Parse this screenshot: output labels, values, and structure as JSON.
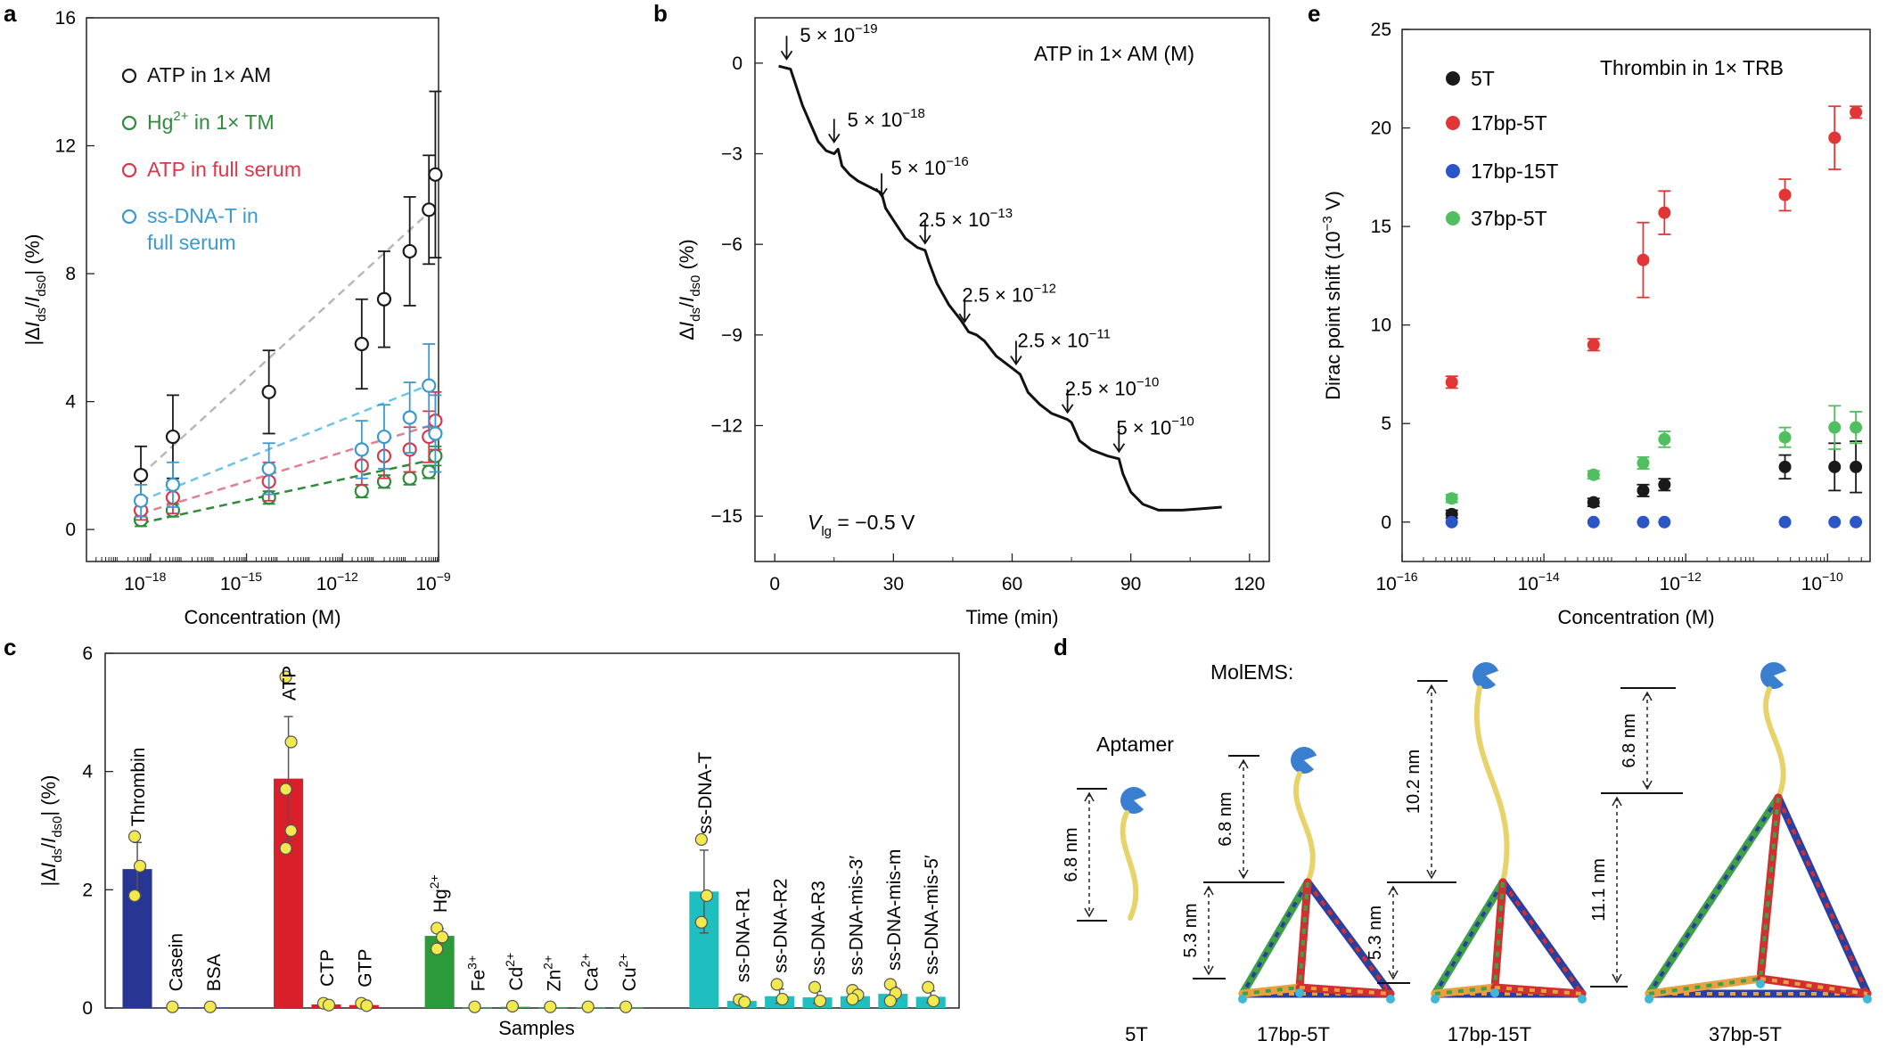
{
  "panel_labels": {
    "a": "a",
    "b": "b",
    "c": "c",
    "d": "d",
    "e": "e"
  },
  "chart_data": [
    {
      "panel": "a",
      "type": "scatter",
      "xlabel": "Concentration (M)",
      "ylabel_parts": [
        "|Δ",
        "I",
        "ds",
        "/",
        "I",
        "ds0",
        "| (%)"
      ],
      "xscale": "log",
      "xlim_exp": [
        -20,
        -9
      ],
      "xticks": [
        "10",
        "10",
        "10",
        "10"
      ],
      "xtick_exps": [
        "−18",
        "−15",
        "−12",
        "−9"
      ],
      "xtick_values_exp": [
        -18,
        -15,
        -12,
        -9
      ],
      "ylim": [
        -1,
        16
      ],
      "yticks": [
        0,
        4,
        8,
        12,
        16
      ],
      "series": [
        {
          "name": "ATP in 1× AM",
          "color": "#1a1a1a",
          "line": "#b8b8b8",
          "x_exp": [
            -18.3,
            -17.3,
            -14.3,
            -11.4,
            -10.7,
            -9.9,
            -9.3,
            -9.1
          ],
          "y": [
            1.7,
            2.9,
            4.3,
            5.8,
            7.2,
            8.7,
            10.0,
            11.1
          ],
          "err": [
            0.9,
            1.3,
            1.3,
            1.4,
            1.5,
            1.7,
            1.7,
            2.6
          ],
          "fit": [
            [
              -18.3,
              1.7
            ],
            [
              -9.1,
              10.1
            ]
          ]
        },
        {
          "name": "Hg",
          "name_sup": "2+",
          "name_rest": " in 1× TM",
          "color": "#2e8b3a",
          "line": "#2e8b3a",
          "x_exp": [
            -18.3,
            -17.3,
            -14.3,
            -11.4,
            -10.7,
            -9.9,
            -9.3,
            -9.1
          ],
          "y": [
            0.3,
            0.6,
            1.0,
            1.2,
            1.5,
            1.6,
            1.8,
            2.3
          ],
          "err": [
            0.2,
            0.2,
            0.2,
            0.2,
            0.2,
            0.2,
            0.2,
            0.3
          ],
          "fit": [
            [
              -18.3,
              0.2
            ],
            [
              -9.1,
              2.2
            ]
          ]
        },
        {
          "name": "ATP in full serum",
          "color": "#d9374b",
          "line": "#e08090",
          "x_exp": [
            -18.3,
            -17.3,
            -14.3,
            -11.4,
            -10.7,
            -9.9,
            -9.3,
            -9.1
          ],
          "y": [
            0.6,
            1.0,
            1.5,
            2.0,
            2.3,
            2.5,
            2.9,
            3.4
          ],
          "err": [
            0.3,
            0.5,
            0.6,
            0.6,
            0.7,
            0.7,
            0.8,
            0.9
          ],
          "fit": [
            [
              -18.3,
              0.5
            ],
            [
              -9.1,
              3.3
            ]
          ]
        },
        {
          "name": "ss-DNA-T in",
          "name2": "full serum",
          "color": "#3a9ad0",
          "line": "#6fc4e8",
          "x_exp": [
            -18.3,
            -17.3,
            -14.3,
            -11.4,
            -10.7,
            -9.9,
            -9.3,
            -9.1
          ],
          "y": [
            0.9,
            1.4,
            1.9,
            2.5,
            2.9,
            3.5,
            4.5,
            3.0
          ],
          "err": [
            0.5,
            0.7,
            0.8,
            0.9,
            1.0,
            1.1,
            1.3,
            1.2
          ],
          "fit": [
            [
              -18.3,
              0.9
            ],
            [
              -9.1,
              4.6
            ]
          ]
        }
      ]
    },
    {
      "panel": "b",
      "type": "line",
      "xlabel": "Time (min)",
      "ylabel_parts": [
        "Δ",
        "I",
        "ds",
        "/",
        "I",
        "ds0",
        " (%)"
      ],
      "xlim": [
        -5,
        125
      ],
      "xticks": [
        0,
        30,
        60,
        90,
        120
      ],
      "ylim": [
        -16.5,
        1.5
      ],
      "yticks": [
        0,
        -3,
        -6,
        -9,
        -12,
        -15
      ],
      "ytick_labels": [
        "0",
        "−3",
        "−6",
        "−9",
        "−12",
        "−15"
      ],
      "legend_text": "ATP in 1× AM (M)",
      "vlg_parts": [
        "V",
        "lg",
        " = −0.5 V"
      ],
      "trace": [
        [
          1,
          -0.1
        ],
        [
          4,
          -0.2
        ],
        [
          5,
          -0.6
        ],
        [
          7,
          -1.4
        ],
        [
          9,
          -2.0
        ],
        [
          11,
          -2.6
        ],
        [
          13,
          -2.9
        ],
        [
          15,
          -3.0
        ],
        [
          16,
          -2.85
        ],
        [
          17,
          -3.4
        ],
        [
          19,
          -3.7
        ],
        [
          21,
          -3.9
        ],
        [
          24,
          -4.1
        ],
        [
          27,
          -4.3
        ],
        [
          28,
          -4.8
        ],
        [
          30,
          -5.2
        ],
        [
          33,
          -5.8
        ],
        [
          36,
          -6.1
        ],
        [
          38,
          -6.2
        ],
        [
          39,
          -6.6
        ],
        [
          41,
          -7.3
        ],
        [
          44,
          -8.0
        ],
        [
          47,
          -8.5
        ],
        [
          49,
          -8.9
        ],
        [
          51,
          -9.0
        ],
        [
          53,
          -9.2
        ],
        [
          56,
          -9.7
        ],
        [
          60,
          -10.1
        ],
        [
          62,
          -10.3
        ],
        [
          64,
          -10.9
        ],
        [
          67,
          -11.3
        ],
        [
          70,
          -11.6
        ],
        [
          74,
          -11.8
        ],
        [
          75,
          -11.9
        ],
        [
          77,
          -12.5
        ],
        [
          80,
          -12.8
        ],
        [
          84,
          -13.0
        ],
        [
          87,
          -13.1
        ],
        [
          88,
          -13.6
        ],
        [
          90,
          -14.2
        ],
        [
          93,
          -14.6
        ],
        [
          97,
          -14.8
        ],
        [
          103,
          -14.8
        ],
        [
          108,
          -14.75
        ],
        [
          113,
          -14.7
        ]
      ],
      "annotations": [
        {
          "base": "5 × 10",
          "exp": "−19",
          "at": [
            3,
            -0.1
          ],
          "label_xy": [
            5,
            0.7
          ]
        },
        {
          "base": "5 × 10",
          "exp": "−18",
          "at": [
            15,
            -2.85
          ],
          "label_xy": [
            17,
            -2.1
          ]
        },
        {
          "base": "5 × 10",
          "exp": "−16",
          "at": [
            27,
            -4.65
          ],
          "label_xy": [
            28,
            -3.7
          ]
        },
        {
          "base": "2.5 × 10",
          "exp": "−13",
          "at": [
            38,
            -6.2
          ],
          "label_xy": [
            35,
            -5.4
          ]
        },
        {
          "base": "2.5 × 10",
          "exp": "−12",
          "at": [
            48,
            -8.8
          ],
          "label_xy": [
            46,
            -7.9
          ]
        },
        {
          "base": "2.5 × 10",
          "exp": "−11",
          "at": [
            61,
            -10.2
          ],
          "label_xy": [
            60,
            -9.4
          ]
        },
        {
          "base": "2.5 × 10",
          "exp": "−10",
          "at": [
            74,
            -11.8
          ],
          "label_xy": [
            72,
            -11.0
          ]
        },
        {
          "base": "5 × 10",
          "exp": "−10",
          "at": [
            87,
            -13.1
          ],
          "label_xy": [
            85,
            -12.3
          ]
        }
      ]
    },
    {
      "panel": "e",
      "type": "scatter",
      "title": "Thrombin in 1× TRB",
      "xlabel": "Concentration (M)",
      "ylabel_parts": [
        "Dirac point shift (10",
        "−3",
        " V)"
      ],
      "xscale": "log",
      "xlim_exp": [
        -16,
        -9.4
      ],
      "xticks": [
        "10",
        "10",
        "10",
        "10"
      ],
      "xtick_exps": [
        "−16",
        "−14",
        "−12",
        "−10"
      ],
      "xtick_values_exp": [
        -16,
        -14,
        -12,
        -10
      ],
      "ylim": [
        -2,
        25
      ],
      "yticks": [
        0,
        5,
        10,
        15,
        20,
        25
      ],
      "series": [
        {
          "name": "5T",
          "color": "#1a1a1a",
          "x_exp": [
            -15.3,
            -13.3,
            -12.6,
            -12.3,
            -10.6,
            -9.9,
            -9.6
          ],
          "y": [
            0.4,
            1.0,
            1.6,
            1.9,
            2.8,
            2.8,
            2.8
          ],
          "err": [
            0.2,
            0.2,
            0.3,
            0.3,
            0.6,
            1.2,
            1.3
          ]
        },
        {
          "name": "17bp-5T",
          "color": "#e23535",
          "x_exp": [
            -15.3,
            -13.3,
            -12.6,
            -12.3,
            -10.6,
            -9.9,
            -9.6
          ],
          "y": [
            7.1,
            9.0,
            13.3,
            15.7,
            16.6,
            19.5,
            20.8
          ],
          "err": [
            0.3,
            0.3,
            1.9,
            1.1,
            0.8,
            1.6,
            0.3
          ]
        },
        {
          "name": "17bp-15T",
          "color": "#2a56c6",
          "x_exp": [
            -15.3,
            -13.3,
            -12.6,
            -12.3,
            -10.6,
            -9.9,
            -9.6
          ],
          "y": [
            0,
            0,
            0,
            0,
            0,
            0,
            0
          ],
          "err": [
            0,
            0,
            0,
            0,
            0,
            0,
            0
          ]
        },
        {
          "name": "37bp-5T",
          "color": "#4fbf5f",
          "x_exp": [
            -15.3,
            -13.3,
            -12.6,
            -12.3,
            -10.6,
            -9.9,
            -9.6
          ],
          "y": [
            1.2,
            2.4,
            3.0,
            4.2,
            4.3,
            4.8,
            4.8
          ],
          "err": [
            0.2,
            0.2,
            0.3,
            0.4,
            0.5,
            1.1,
            0.8
          ]
        }
      ]
    },
    {
      "panel": "c",
      "type": "bar",
      "xlabel": "Samples",
      "ylabel_parts": [
        "|Δ",
        "I",
        "ds",
        "/",
        "I",
        "ds0",
        "| (%)"
      ],
      "ylim": [
        0,
        6
      ],
      "yticks": [
        0,
        2,
        4,
        6
      ],
      "bars": [
        {
          "label": "Thrombin",
          "value": 2.35,
          "err": 0.45,
          "color": "#283593",
          "pts": [
            2.9,
            2.4,
            1.9
          ],
          "slot": 0
        },
        {
          "label": "Casein",
          "value": 0.01,
          "err": 0,
          "color": "#283593",
          "pts": [
            0.02
          ],
          "slot": 1
        },
        {
          "label": "BSA",
          "value": 0.01,
          "err": 0,
          "color": "#283593",
          "pts": [
            0.02
          ],
          "slot": 2
        },
        {
          "label": "ATP",
          "value": 3.88,
          "err": 1.05,
          "color": "#d81f2a",
          "pts": [
            5.6,
            4.5,
            3.7,
            3.0,
            2.7
          ],
          "slot": 4
        },
        {
          "label": "CTP",
          "value": 0.06,
          "err": 0.03,
          "color": "#d81f2a",
          "pts": [
            0.08,
            0.05
          ],
          "slot": 5
        },
        {
          "label": "GTP",
          "value": 0.05,
          "err": 0.03,
          "color": "#d81f2a",
          "pts": [
            0.08,
            0.04
          ],
          "slot": 6
        },
        {
          "label": "Hg",
          "label_sup": "2+",
          "value": 1.22,
          "err": 0.12,
          "color": "#2a9a3b",
          "pts": [
            1.35,
            1.2,
            1.0
          ],
          "slot": 8
        },
        {
          "label": "Fe",
          "label_sup": "3+",
          "value": 0.01,
          "err": 0,
          "color": "#2a9a3b",
          "pts": [
            0.02
          ],
          "slot": 9
        },
        {
          "label": "Cd",
          "label_sup": "2+",
          "value": 0.02,
          "err": 0,
          "color": "#2a9a3b",
          "pts": [
            0.03
          ],
          "slot": 10
        },
        {
          "label": "Zn",
          "label_sup": "2+",
          "value": 0.01,
          "err": 0,
          "color": "#2a9a3b",
          "pts": [
            0.02
          ],
          "slot": 11
        },
        {
          "label": "Ca",
          "label_sup": "2+",
          "value": 0.01,
          "err": 0,
          "color": "#2a9a3b",
          "pts": [
            0.02
          ],
          "slot": 12
        },
        {
          "label": "Cu",
          "label_sup": "2+",
          "value": 0.01,
          "err": 0,
          "color": "#2a9a3b",
          "pts": [
            0.02
          ],
          "slot": 13
        },
        {
          "label": "ss-DNA-T",
          "value": 1.97,
          "err": 0.7,
          "color": "#1fbfbf",
          "pts": [
            2.85,
            1.9,
            1.45
          ],
          "slot": 15
        },
        {
          "label": "ss-DNA-R1",
          "value": 0.12,
          "err": 0.04,
          "color": "#1fbfbf",
          "pts": [
            0.14,
            0.1
          ],
          "slot": 16
        },
        {
          "label": "ss-DNA-R2",
          "value": 0.2,
          "err": 0.12,
          "color": "#1fbfbf",
          "pts": [
            0.4,
            0.15
          ],
          "slot": 17
        },
        {
          "label": "ss-DNA-R3",
          "value": 0.18,
          "err": 0.1,
          "color": "#1fbfbf",
          "pts": [
            0.35,
            0.12
          ],
          "slot": 18
        },
        {
          "label": "ss-DNA-mis-3′",
          "value": 0.2,
          "err": 0.08,
          "color": "#1fbfbf",
          "pts": [
            0.3,
            0.22,
            0.15
          ],
          "slot": 19
        },
        {
          "label": "ss-DNA-mis-m",
          "value": 0.24,
          "err": 0.12,
          "color": "#1fbfbf",
          "pts": [
            0.4,
            0.25,
            0.12
          ],
          "slot": 20
        },
        {
          "label": "ss-DNA-mis-5′",
          "value": 0.19,
          "err": 0.1,
          "color": "#1fbfbf",
          "pts": [
            0.35,
            0.12
          ],
          "slot": 21
        }
      ]
    }
  ],
  "diagram_d": {
    "header": "MolEMS:",
    "aptamer_label": "Aptamer",
    "structures": [
      {
        "name": "5T",
        "dims": [
          "6.8 nm"
        ]
      },
      {
        "name": "17bp-5T",
        "dims": [
          "6.8 nm",
          "5.3 nm"
        ]
      },
      {
        "name": "17bp-15T",
        "dims": [
          "10.2 nm",
          "5.3 nm"
        ]
      },
      {
        "name": "37bp-5T",
        "dims": [
          "6.8 nm",
          "11.1 nm"
        ]
      }
    ],
    "colors": {
      "probe": "#3a7fcf",
      "linker": "#e8d36b",
      "edge1": "#2a3fa0",
      "edge2": "#d03030",
      "edge3": "#3fa04a",
      "edge4": "#e8a040",
      "edge5": "#b84fb8",
      "edge6": "#3fb8d8"
    }
  }
}
